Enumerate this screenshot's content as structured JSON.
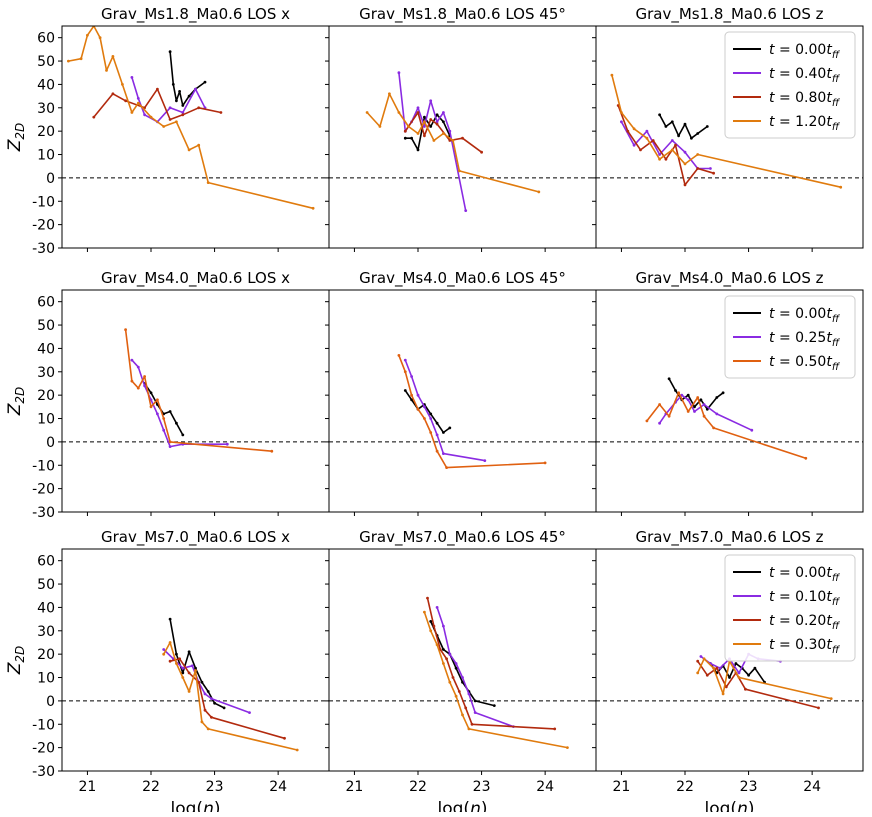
{
  "figure": {
    "xlabel_text": "log(n)",
    "ylabel_text": "Z2D"
  },
  "chart_data": [
    {
      "type": "line",
      "title": "Grav_Ms1.8_Ma0.6 LOS x",
      "xlabel": "",
      "ylabel": "Z2D",
      "xlim": [
        20.6,
        24.8
      ],
      "ylim": [
        -30,
        65
      ],
      "xticks": [
        21,
        22,
        23,
        24
      ],
      "yticks": [
        60,
        50,
        40,
        30,
        20,
        10,
        0,
        -10,
        -20,
        -30
      ],
      "series": [
        {
          "name": "t = 0.00t_ff",
          "color": "#000000",
          "x": [
            22.3,
            22.35,
            22.4,
            22.45,
            22.5,
            22.6,
            22.7,
            22.85
          ],
          "y": [
            54,
            40,
            33,
            37,
            31,
            35,
            38,
            41
          ]
        },
        {
          "name": "t = 0.40t_ff",
          "color": "#8a2be2",
          "x": [
            21.7,
            21.8,
            21.9,
            22.1,
            22.3,
            22.5,
            22.7,
            22.85
          ],
          "y": [
            43,
            34,
            27,
            24,
            30,
            28,
            38,
            30
          ]
        },
        {
          "name": "t = 0.80t_ff",
          "color": "#b22a0e",
          "x": [
            21.1,
            21.4,
            21.6,
            21.9,
            22.1,
            22.3,
            22.5,
            22.75,
            23.1
          ],
          "y": [
            26,
            36,
            33,
            30,
            38,
            25,
            27,
            30,
            28
          ]
        },
        {
          "name": "t = 1.20t_ff",
          "color": "#e07b0e",
          "x": [
            20.7,
            20.9,
            21.0,
            21.1,
            21.2,
            21.3,
            21.4,
            21.55,
            21.7,
            21.8,
            22.0,
            22.2,
            22.4,
            22.6,
            22.75,
            22.9,
            24.55
          ],
          "y": [
            50,
            51,
            61,
            65,
            60,
            46,
            52,
            40,
            28,
            32,
            26,
            22,
            24,
            12,
            14,
            -2,
            -13
          ]
        }
      ],
      "legend": "top-right",
      "zero_line": true
    },
    {
      "type": "line",
      "title": "Grav_Ms1.8_Ma0.6 LOS 45°",
      "xlabel": "",
      "ylabel": "",
      "xlim": [
        20.6,
        24.8
      ],
      "ylim": [
        -30,
        65
      ],
      "xticks": [
        21,
        22,
        23,
        24
      ],
      "series": [
        {
          "name": "t = 0.00t_ff",
          "color": "#000000",
          "x": [
            21.8,
            21.9,
            22.0,
            22.1,
            22.2,
            22.3,
            22.4,
            22.5
          ],
          "y": [
            17,
            17,
            12,
            26,
            22,
            27,
            24,
            18
          ]
        },
        {
          "name": "t = 0.40t_ff",
          "color": "#8a2be2",
          "x": [
            21.7,
            21.8,
            21.9,
            22.0,
            22.1,
            22.2,
            22.3,
            22.4,
            22.5,
            22.75
          ],
          "y": [
            45,
            20,
            24,
            30,
            22,
            33,
            24,
            28,
            20,
            -14
          ]
        },
        {
          "name": "t = 0.80t_ff",
          "color": "#b22a0e",
          "x": [
            21.8,
            22.0,
            22.1,
            22.2,
            22.3,
            22.5,
            22.7,
            23.0
          ],
          "y": [
            20,
            28,
            18,
            25,
            23,
            16,
            17,
            11
          ]
        },
        {
          "name": "t = 1.20t_ff",
          "color": "#e07b0e",
          "x": [
            21.2,
            21.4,
            21.55,
            21.7,
            21.85,
            22.0,
            22.1,
            22.25,
            22.4,
            22.55,
            22.65,
            23.9
          ],
          "y": [
            28,
            22,
            36,
            28,
            22,
            19,
            24,
            16,
            19,
            16,
            3,
            -6
          ]
        }
      ],
      "zero_line": true
    },
    {
      "type": "line",
      "title": "Grav_Ms1.8_Ma0.6 LOS z",
      "xlabel": "",
      "ylabel": "",
      "xlim": [
        20.6,
        24.8
      ],
      "ylim": [
        -30,
        65
      ],
      "xticks": [
        21,
        22,
        23,
        24
      ],
      "series": [
        {
          "name": "t = 0.00t_ff",
          "color": "#000000",
          "x": [
            21.6,
            21.7,
            21.8,
            21.9,
            22.0,
            22.1,
            22.2,
            22.35
          ],
          "y": [
            27,
            22,
            24,
            18,
            23,
            17,
            19,
            22
          ]
        },
        {
          "name": "t = 0.40t_ff",
          "color": "#8a2be2",
          "x": [
            21.0,
            21.2,
            21.4,
            21.6,
            21.8,
            22.0,
            22.2,
            22.4
          ],
          "y": [
            24,
            14,
            20,
            10,
            16,
            11,
            4,
            4
          ]
        },
        {
          "name": "t = 0.80t_ff",
          "color": "#b22a0e",
          "x": [
            20.95,
            21.1,
            21.3,
            21.5,
            21.7,
            21.85,
            22.0,
            22.2,
            22.45
          ],
          "y": [
            31,
            20,
            12,
            16,
            8,
            14,
            -3,
            4,
            2
          ]
        },
        {
          "name": "t = 1.20t_ff",
          "color": "#e07b0e",
          "x": [
            20.85,
            21.0,
            21.2,
            21.4,
            21.6,
            21.8,
            22.0,
            22.2,
            24.45
          ],
          "y": [
            44,
            28,
            21,
            17,
            8,
            12,
            6,
            10,
            -4
          ]
        }
      ],
      "legend_entries": [
        "t = 0.00t_ff",
        "t = 0.40t_ff",
        "t = 0.80t_ff",
        "t = 1.20t_ff"
      ],
      "legend": "top-right",
      "zero_line": true
    },
    {
      "type": "line",
      "title": "Grav_Ms4.0_Ma0.6 LOS x",
      "xlabel": "",
      "ylabel": "Z2D",
      "xlim": [
        20.6,
        24.8
      ],
      "ylim": [
        -30,
        65
      ],
      "xticks": [
        21,
        22,
        23,
        24
      ],
      "yticks": [
        60,
        50,
        40,
        30,
        20,
        10,
        0,
        -10,
        -20,
        -30
      ],
      "series": [
        {
          "name": "t = 0.00t_ff",
          "color": "#000000",
          "x": [
            21.9,
            22.0,
            22.1,
            22.2,
            22.3,
            22.4,
            22.5
          ],
          "y": [
            25,
            21,
            16,
            12,
            13,
            8,
            3
          ]
        },
        {
          "name": "t = 0.25t_ff",
          "color": "#8a2be2",
          "x": [
            21.7,
            21.8,
            21.9,
            22.0,
            22.1,
            22.2,
            22.3,
            22.5,
            23.2
          ],
          "y": [
            35,
            32,
            24,
            18,
            12,
            5,
            -2,
            -1,
            -1
          ]
        },
        {
          "name": "t = 0.50t_ff",
          "color": "#e06010",
          "x": [
            21.6,
            21.7,
            21.8,
            21.9,
            22.0,
            22.1,
            22.2,
            22.3,
            23.9
          ],
          "y": [
            48,
            26,
            23,
            28,
            15,
            18,
            10,
            0,
            -4
          ]
        }
      ],
      "zero_line": true
    },
    {
      "type": "line",
      "title": "Grav_Ms4.0_Ma0.6 LOS 45°",
      "xlabel": "",
      "ylabel": "",
      "xlim": [
        20.6,
        24.8
      ],
      "ylim": [
        -30,
        65
      ],
      "xticks": [
        21,
        22,
        23,
        24
      ],
      "series": [
        {
          "name": "t = 0.00t_ff",
          "color": "#000000",
          "x": [
            21.8,
            21.9,
            22.0,
            22.1,
            22.2,
            22.3,
            22.4,
            22.5
          ],
          "y": [
            22,
            18,
            14,
            16,
            12,
            8,
            4,
            6
          ]
        },
        {
          "name": "t = 0.25t_ff",
          "color": "#8a2be2",
          "x": [
            21.8,
            21.9,
            22.0,
            22.1,
            22.2,
            22.3,
            22.4,
            23.05
          ],
          "y": [
            35,
            28,
            20,
            15,
            10,
            3,
            -5,
            -8
          ]
        },
        {
          "name": "t = 0.50t_ff",
          "color": "#e06010",
          "x": [
            21.7,
            21.8,
            21.9,
            22.0,
            22.1,
            22.2,
            22.3,
            22.45,
            24.0
          ],
          "y": [
            37,
            30,
            20,
            14,
            10,
            4,
            -4,
            -11,
            -9
          ]
        }
      ],
      "zero_line": true
    },
    {
      "type": "line",
      "title": "Grav_Ms4.0_Ma0.6 LOS z",
      "xlabel": "",
      "ylabel": "",
      "xlim": [
        20.6,
        24.8
      ],
      "ylim": [
        -30,
        65
      ],
      "xticks": [
        21,
        22,
        23,
        24
      ],
      "series": [
        {
          "name": "t = 0.00t_ff",
          "color": "#000000",
          "x": [
            21.75,
            21.85,
            21.95,
            22.05,
            22.15,
            22.25,
            22.35,
            22.5,
            22.6
          ],
          "y": [
            27,
            22,
            18,
            20,
            15,
            18,
            14,
            19,
            21
          ]
        },
        {
          "name": "t = 0.25t_ff",
          "color": "#8a2be2",
          "x": [
            21.6,
            21.7,
            21.85,
            21.95,
            22.05,
            22.15,
            22.3,
            22.5,
            23.05
          ],
          "y": [
            8,
            12,
            17,
            20,
            18,
            13,
            16,
            12,
            5
          ]
        },
        {
          "name": "t = 0.50t_ff",
          "color": "#e06010",
          "x": [
            21.4,
            21.6,
            21.75,
            21.9,
            22.05,
            22.2,
            22.3,
            22.45,
            23.9
          ],
          "y": [
            9,
            16,
            11,
            21,
            13,
            19,
            11,
            6,
            -7
          ]
        }
      ],
      "legend_entries": [
        "t = 0.00t_ff",
        "t = 0.25t_ff",
        "t = 0.50t_ff"
      ],
      "legend": "top-right",
      "zero_line": true
    },
    {
      "type": "line",
      "title": "Grav_Ms7.0_Ma0.6 LOS x",
      "xlabel": "log(n)",
      "ylabel": "Z2D",
      "xlim": [
        20.6,
        24.8
      ],
      "ylim": [
        -30,
        65
      ],
      "xticks": [
        21,
        22,
        23,
        24
      ],
      "yticks": [
        60,
        50,
        40,
        30,
        20,
        10,
        0,
        -10,
        -20,
        -30
      ],
      "series": [
        {
          "name": "t = 0.00t_ff",
          "color": "#000000",
          "x": [
            22.3,
            22.4,
            22.5,
            22.6,
            22.7,
            22.8,
            22.9,
            23.0,
            23.15
          ],
          "y": [
            35,
            20,
            12,
            21,
            14,
            8,
            4,
            -1,
            -3
          ]
        },
        {
          "name": "t = 0.10t_ff",
          "color": "#8a2be2",
          "x": [
            22.2,
            22.35,
            22.5,
            22.65,
            22.75,
            22.85,
            22.95,
            23.55
          ],
          "y": [
            22,
            18,
            14,
            15,
            8,
            3,
            1,
            -5
          ]
        },
        {
          "name": "t = 0.20t_ff",
          "color": "#b22a0e",
          "x": [
            22.3,
            22.45,
            22.6,
            22.75,
            22.85,
            22.95,
            24.1
          ],
          "y": [
            17,
            18,
            12,
            8,
            -4,
            -7,
            -16
          ]
        },
        {
          "name": "t = 0.30t_ff",
          "color": "#e07b0e",
          "x": [
            22.2,
            22.3,
            22.4,
            22.5,
            22.6,
            22.7,
            22.8,
            22.9,
            24.3
          ],
          "y": [
            20,
            25,
            16,
            10,
            4,
            13,
            -9,
            -12,
            -21
          ]
        }
      ],
      "zero_line": true
    },
    {
      "type": "line",
      "title": "Grav_Ms7.0_Ma0.6 LOS 45°",
      "xlabel": "log(n)",
      "ylabel": "",
      "xlim": [
        20.6,
        24.8
      ],
      "ylim": [
        -30,
        65
      ],
      "xticks": [
        21,
        22,
        23,
        24
      ],
      "series": [
        {
          "name": "t = 0.00t_ff",
          "color": "#000000",
          "x": [
            22.2,
            22.3,
            22.4,
            22.5,
            22.6,
            22.7,
            22.8,
            22.9,
            23.2
          ],
          "y": [
            34,
            28,
            22,
            20,
            14,
            8,
            4,
            0,
            -2
          ]
        },
        {
          "name": "t = 0.10t_ff",
          "color": "#8a2be2",
          "x": [
            22.3,
            22.4,
            22.5,
            22.6,
            22.7,
            22.8,
            22.9,
            23.5
          ],
          "y": [
            40,
            32,
            20,
            16,
            10,
            3,
            -5,
            -11
          ]
        },
        {
          "name": "t = 0.20t_ff",
          "color": "#b22a0e",
          "x": [
            22.15,
            22.25,
            22.35,
            22.45,
            22.55,
            22.65,
            22.75,
            22.85,
            24.15
          ],
          "y": [
            44,
            32,
            22,
            18,
            10,
            4,
            -3,
            -10,
            -12
          ]
        },
        {
          "name": "t = 0.30t_ff",
          "color": "#e07b0e",
          "x": [
            22.1,
            22.2,
            22.3,
            22.4,
            22.5,
            22.6,
            22.7,
            22.8,
            24.35
          ],
          "y": [
            38,
            30,
            24,
            16,
            8,
            2,
            -6,
            -12,
            -20
          ]
        }
      ],
      "zero_line": true
    },
    {
      "type": "line",
      "title": "Grav_Ms7.0_Ma0.6 LOS z",
      "xlabel": "log(n)",
      "ylabel": "",
      "xlim": [
        20.6,
        24.8
      ],
      "ylim": [
        -30,
        65
      ],
      "xticks": [
        21,
        22,
        23,
        24
      ],
      "series": [
        {
          "name": "t = 0.00t_ff",
          "color": "#000000",
          "x": [
            22.4,
            22.5,
            22.6,
            22.7,
            22.8,
            22.9,
            23.0,
            23.1,
            23.25
          ],
          "y": [
            16,
            12,
            15,
            10,
            16,
            14,
            11,
            14,
            8
          ]
        },
        {
          "name": "t = 0.10t_ff",
          "color": "#8a2be2",
          "x": [
            22.25,
            22.4,
            22.55,
            22.7,
            22.85,
            23.0,
            23.15,
            23.5
          ],
          "y": [
            19,
            16,
            14,
            18,
            12,
            20,
            18,
            17
          ]
        },
        {
          "name": "t = 0.20t_ff",
          "color": "#b22a0e",
          "x": [
            22.2,
            22.35,
            22.5,
            22.65,
            22.8,
            22.95,
            24.1
          ],
          "y": [
            17,
            11,
            14,
            6,
            12,
            5,
            -3
          ]
        },
        {
          "name": "t = 0.30t_ff",
          "color": "#e07b0e",
          "x": [
            22.2,
            22.3,
            22.45,
            22.6,
            22.7,
            22.85,
            24.3
          ],
          "y": [
            12,
            18,
            14,
            3,
            17,
            10,
            1
          ]
        }
      ],
      "legend_entries": [
        "t = 0.00t_ff",
        "t = 0.10t_ff",
        "t = 0.20t_ff",
        "t = 0.30t_ff"
      ],
      "legend": "top-right",
      "zero_line": true
    }
  ]
}
